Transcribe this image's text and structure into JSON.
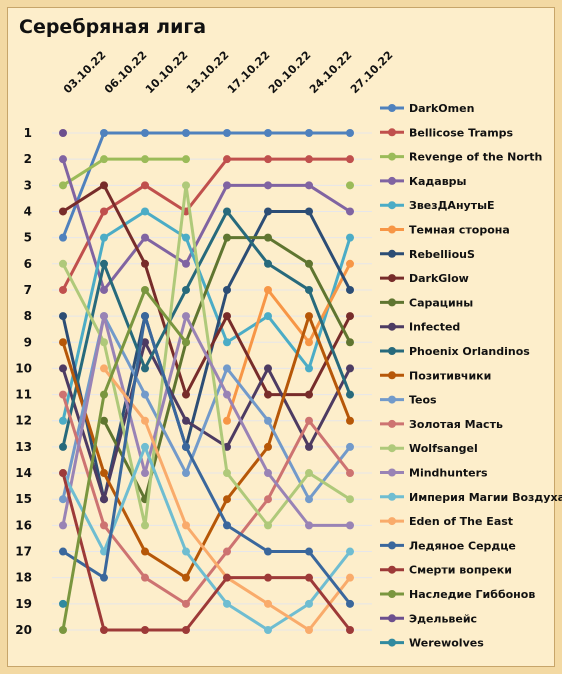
{
  "chart_data": {
    "type": "line",
    "title": "Серебряная лига",
    "x": [
      "03.10.22",
      "06.10.22",
      "10.10.22",
      "13.10.22",
      "17.10.22",
      "20.10.22",
      "24.10.22",
      "27.10.22"
    ],
    "y_ticks": [
      "1",
      "2",
      "3",
      "4",
      "5",
      "6",
      "7",
      "8",
      "9",
      "10",
      "11",
      "12",
      "13",
      "14",
      "15",
      "16",
      "17",
      "18",
      "19",
      "20"
    ],
    "ylim": [
      1,
      20
    ],
    "y_inverted": true,
    "grid": true,
    "legend_position": "right",
    "series": [
      {
        "name": "DarkOmen",
        "color": "#4f81bd",
        "values": [
          5,
          1,
          1,
          1,
          1,
          1,
          1,
          1
        ]
      },
      {
        "name": "Bellicose Tramps",
        "color": "#c0504d",
        "values": [
          7,
          4,
          3,
          4,
          2,
          2,
          2,
          2
        ]
      },
      {
        "name": "Revenge of the North",
        "color": "#9bbb59",
        "values": [
          3,
          2,
          2,
          2,
          null,
          null,
          null,
          3
        ]
      },
      {
        "name": "Кадавры",
        "color": "#8064a2",
        "values": [
          2,
          7,
          5,
          6,
          3,
          3,
          3,
          4
        ]
      },
      {
        "name": "ЗвезДАнутыЕ",
        "color": "#4bacc6",
        "values": [
          12,
          5,
          4,
          5,
          9,
          8,
          10,
          5
        ]
      },
      {
        "name": "Темная сторона",
        "color": "#f79646",
        "values": [
          null,
          null,
          null,
          null,
          12,
          7,
          9,
          6
        ]
      },
      {
        "name": "RebelliouS",
        "color": "#2c4d75",
        "values": [
          8,
          15,
          8,
          13,
          7,
          4,
          4,
          7
        ]
      },
      {
        "name": "DarkGlow",
        "color": "#772c2a",
        "values": [
          4,
          3,
          6,
          11,
          8,
          11,
          11,
          8
        ]
      },
      {
        "name": "Сарацины",
        "color": "#5f7530",
        "values": [
          null,
          12,
          15,
          9,
          5,
          5,
          6,
          9
        ]
      },
      {
        "name": "Infected",
        "color": "#4d3b62",
        "values": [
          10,
          15,
          9,
          12,
          13,
          10,
          13,
          10
        ]
      },
      {
        "name": "Phoenix Orlandinos",
        "color": "#276a7c",
        "values": [
          13,
          6,
          10,
          7,
          4,
          6,
          7,
          11
        ]
      },
      {
        "name": "Позитивчики",
        "color": "#b65708",
        "values": [
          9,
          14,
          17,
          18,
          15,
          13,
          8,
          12
        ]
      },
      {
        "name": "Teos",
        "color": "#729aca",
        "values": [
          15,
          8,
          11,
          14,
          10,
          12,
          15,
          13
        ]
      },
      {
        "name": "Золотая Масть",
        "color": "#cd7371",
        "values": [
          11,
          16,
          18,
          19,
          17,
          15,
          12,
          14
        ]
      },
      {
        "name": "Wolfsangel",
        "color": "#afc97a",
        "values": [
          6,
          9,
          16,
          3,
          14,
          16,
          14,
          15
        ]
      },
      {
        "name": "Mindhunters",
        "color": "#9983b5",
        "values": [
          16,
          8,
          14,
          8,
          11,
          14,
          16,
          16
        ]
      },
      {
        "name": "Империя Магии Воздуха",
        "color": "#6fbdd1",
        "values": [
          14,
          17,
          13,
          17,
          19,
          20,
          19,
          17
        ]
      },
      {
        "name": "Eden of The East",
        "color": "#f9ab6b",
        "values": [
          null,
          10,
          12,
          16,
          18,
          19,
          20,
          18
        ]
      },
      {
        "name": "Ледяное Сердце",
        "color": "#3a679c",
        "values": [
          17,
          18,
          8,
          13,
          16,
          17,
          17,
          19
        ]
      },
      {
        "name": "Смерти вопреки",
        "color": "#9d3a38",
        "values": [
          14,
          20,
          20,
          20,
          18,
          18,
          18,
          20
        ]
      },
      {
        "name": "Наследие Гиббонов",
        "color": "#7a963f",
        "values": [
          20,
          11,
          7,
          9,
          null,
          null,
          null,
          null
        ]
      },
      {
        "name": "Эдельвейс",
        "color": "#6c4f8e",
        "values": [
          1,
          null,
          null,
          null,
          null,
          null,
          null,
          null
        ]
      },
      {
        "name": "Werewolves",
        "color": "#318a9f",
        "values": [
          19,
          null,
          null,
          null,
          null,
          null,
          null,
          null
        ]
      }
    ]
  }
}
